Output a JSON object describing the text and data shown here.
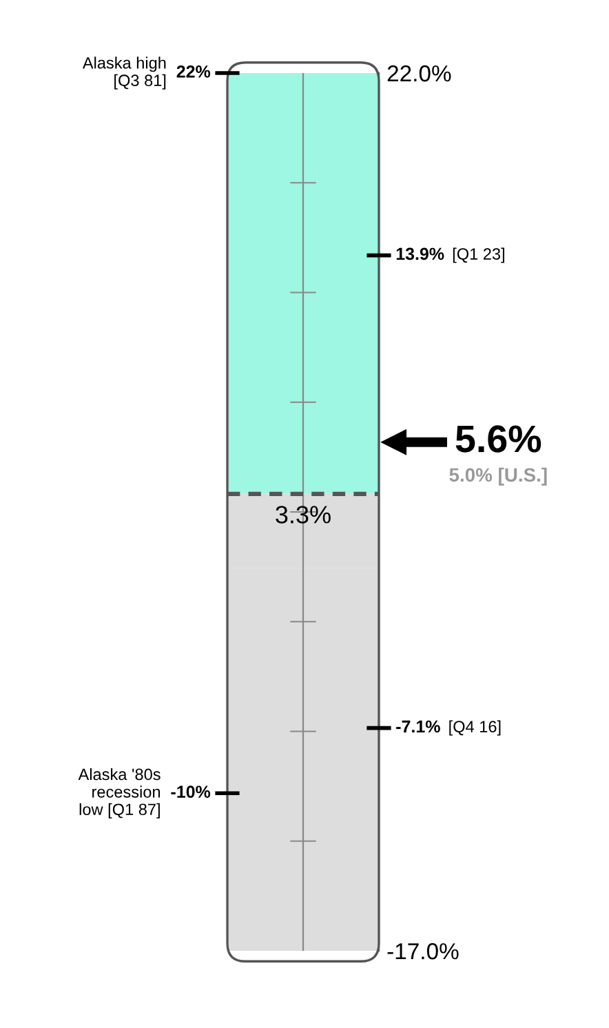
{
  "chart_data": {
    "type": "bar",
    "categories": [
      null
    ],
    "stacked": true,
    "series": [
      {
        "color": "#dddddd",
        "values": [
          3.3
        ]
      },
      {
        "color": "#9ef7e2",
        "values": [
          18.7
        ]
      },
      {
        "color": "#dddddd",
        "values": [
          -17
        ]
      }
    ],
    "ylim": [
      -17,
      22
    ],
    "yticks": [
      {
        "value": 22,
        "label": "22.0%"
      },
      {
        "value": -17,
        "label": "-17.0%"
      }
    ],
    "ref_lines": [
      {
        "axis": "y",
        "value": 3.3,
        "label": "3.3%",
        "line_style": "dashed",
        "color": "#555555"
      },
      {
        "axis": "y",
        "value": 22,
        "label": "22%",
        "color": "#000000"
      },
      {
        "axis": "y",
        "value": 13.9,
        "label": "13.9%",
        "color": "#000000"
      },
      {
        "axis": "y",
        "value": -10,
        "label": "-10%",
        "color": "#000000"
      },
      {
        "axis": "y",
        "value": -7.1,
        "label": "-7.1%",
        "color": "#000000"
      },
      {
        "axis": "y",
        "value": 5.6,
        "label": "5.6%",
        "color": "#000000"
      }
    ],
    "annotations": [
      "Alaska high\n[Q3 81]",
      "[Q1 23]",
      "Alaska '80s\nrecession\nlow [Q1 87]",
      "[Q4 16]",
      "5.0% [U.S.]"
    ]
  }
}
